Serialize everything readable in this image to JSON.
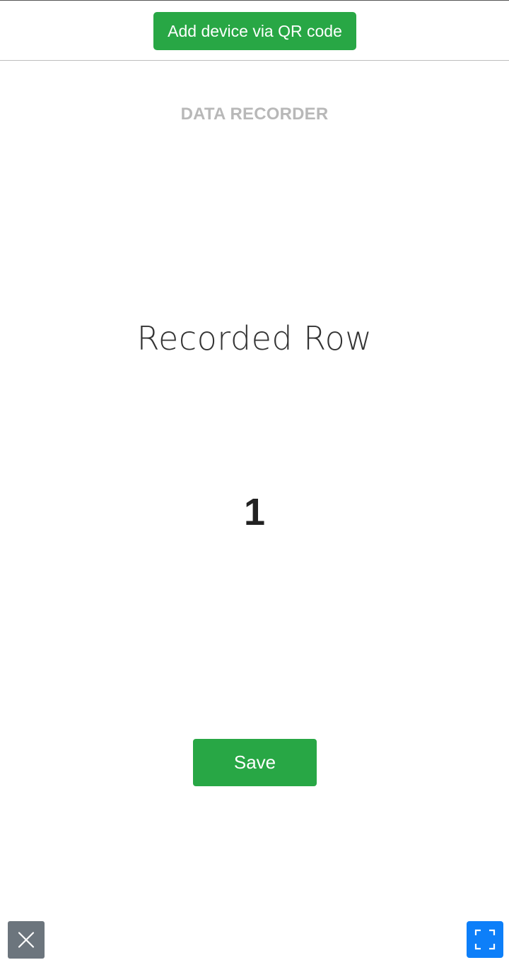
{
  "header": {
    "qr_button_label": "Add device via QR code"
  },
  "recorder": {
    "title": "DATA RECORDER",
    "row_label": "Recorded Row",
    "row_value": "1"
  },
  "actions": {
    "save_label": "Save"
  },
  "footer": {
    "close_icon": "close-icon",
    "fullscreen_icon": "fullscreen-icon"
  },
  "colors": {
    "accent_green": "#28a745",
    "close_gray": "#6c757d",
    "fullscreen_blue": "#0d7ff9",
    "title_gray": "#b8b8b8"
  }
}
